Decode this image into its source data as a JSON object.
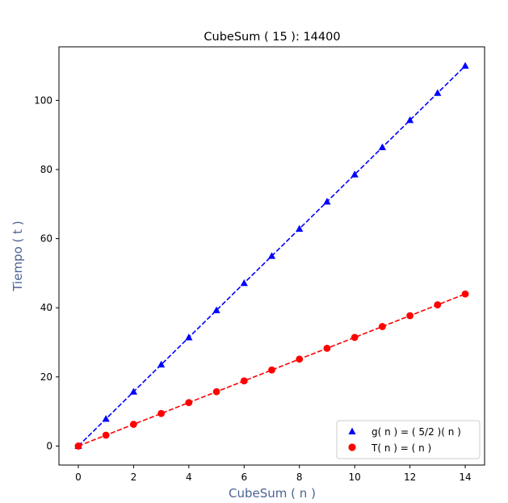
{
  "chart_data": {
    "type": "line",
    "title": "CubeSum ( 15 ): 14400",
    "xlabel": "CubeSum ( n )",
    "ylabel": "Tiempo ( t )",
    "label_color": "#4c6391",
    "xlim": [
      -0.7,
      14.7
    ],
    "ylim": [
      -5.5,
      115.5
    ],
    "xticks": [
      0,
      2,
      4,
      6,
      8,
      10,
      12,
      14
    ],
    "yticks": [
      0,
      20,
      40,
      60,
      80,
      100
    ],
    "grid": false,
    "legend_position": "lower-right",
    "x": [
      0,
      1,
      2,
      3,
      4,
      5,
      6,
      7,
      8,
      9,
      10,
      11,
      12,
      13,
      14
    ],
    "series": [
      {
        "name": "g( n ) = ( 5/2 )( n )",
        "color": "#0000ff",
        "marker": "triangle",
        "linestyle": "dashed",
        "values": [
          0,
          7.857,
          15.714,
          23.571,
          31.429,
          39.286,
          47.143,
          55,
          62.857,
          70.714,
          78.571,
          86.429,
          94.286,
          102.143,
          110
        ]
      },
      {
        "name": "T( n ) = ( n )",
        "color": "#ff0000",
        "marker": "circle",
        "linestyle": "dashed",
        "values": [
          0,
          3.143,
          6.286,
          9.429,
          12.571,
          15.714,
          18.857,
          22,
          25.143,
          28.286,
          31.429,
          34.571,
          37.714,
          40.857,
          44
        ]
      }
    ]
  }
}
